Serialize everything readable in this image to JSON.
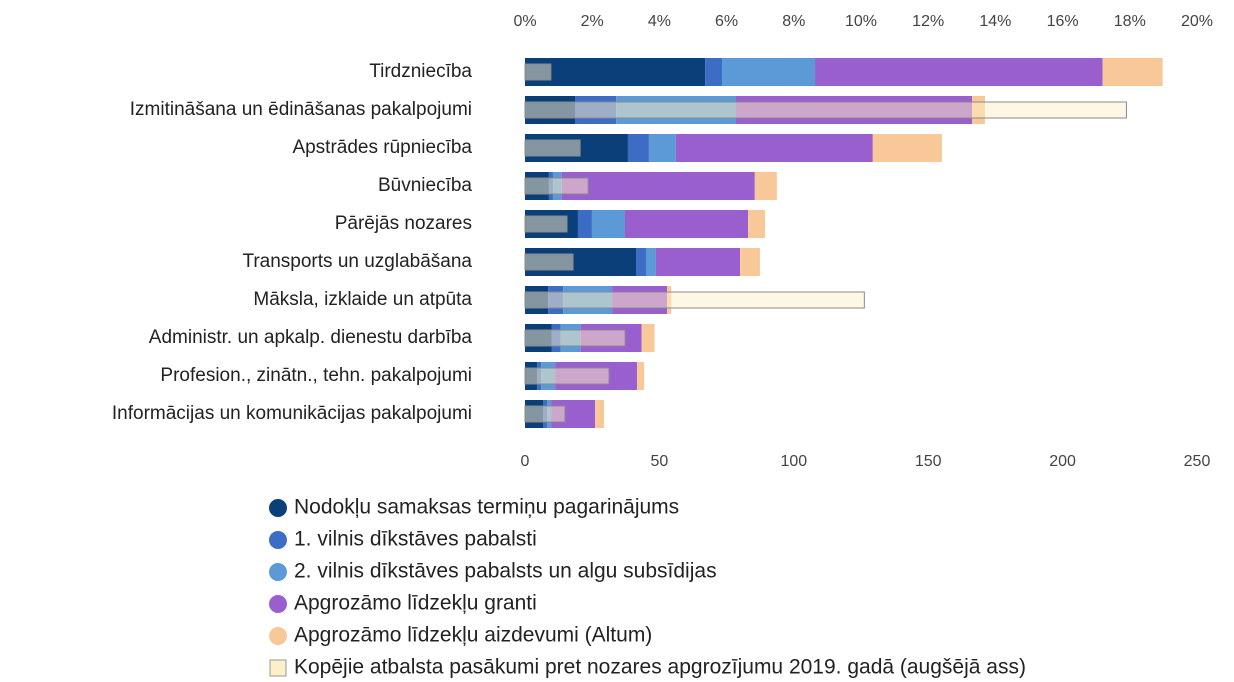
{
  "chart_data": {
    "type": "bar",
    "orientation": "horizontal",
    "stacked": true,
    "categories": [
      "Tirdzniecība",
      "Izmitināšana un ēdināšanas pakalpojumi",
      "Apstrādes rūpniecība",
      "Būvniecība",
      "Pārējās nozares",
      "Transports un uzglabāšana",
      "Māksla, izklaide un atpūta",
      "Administr. un apkalp. dienestu darbība",
      "Profesion., zinātn., tehn. pakalpojumi",
      "Informācijas un komunikācijas pakalpojumi"
    ],
    "series": [
      {
        "name": "Nodokļu samaksas termiņu pagarinājums",
        "color": "#0b3f7a",
        "values": [
          67,
          18.6,
          38.3,
          8.9,
          19.7,
          41.3,
          8.6,
          10,
          4.5,
          6.7
        ]
      },
      {
        "name": "1. vilnis dīkstāves pabalsti",
        "color": "#3d6cc4",
        "values": [
          6.3,
          15.3,
          7.8,
          1.5,
          5.2,
          3.7,
          5.6,
          3.3,
          1.5,
          1.5
        ]
      },
      {
        "name": "2. vilnis dīkstāves pabalsts un algu subsīdijas",
        "color": "#5b9ad6",
        "values": [
          34.6,
          44.6,
          10,
          3.3,
          12.3,
          3.7,
          18.2,
          7.4,
          5.2,
          1.5
        ]
      },
      {
        "name": "Apgrozāmo līdzekļu granti",
        "color": "#9a5fcf",
        "values": [
          107,
          87.8,
          73.3,
          71.8,
          45.8,
          31.3,
          20.5,
          22.7,
          30.5,
          16.4
        ]
      },
      {
        "name": "Apgrozāmo līdzekļu aizdevumi (Altum)",
        "color": "#f8c898",
        "values": [
          22.3,
          4.8,
          25.7,
          8.2,
          6.3,
          7.4,
          1.5,
          4.8,
          2.6,
          3.3
        ]
      },
      {
        "name": "Kopējie atbalsta pasākumi pret nozares apgrozījumu 2019. gadā (augšējā ass)",
        "color": "#fdf0c8",
        "axis": "x2",
        "values": [
          0.77,
          17.9,
          1.64,
          1.88,
          1.25,
          1.43,
          10.1,
          2.98,
          2.5,
          1.19
        ]
      }
    ],
    "xlim": [
      0,
      250
    ],
    "xticks": [
      0,
      50,
      100,
      150,
      200,
      250
    ],
    "x2lim": [
      0,
      20
    ],
    "x2ticks": [
      {
        "value": 0,
        "label": "0%"
      },
      {
        "value": 2,
        "label": "2%"
      },
      {
        "value": 4,
        "label": "4%"
      },
      {
        "value": 6,
        "label": "6%"
      },
      {
        "value": 8,
        "label": "8%"
      },
      {
        "value": 10,
        "label": "10%"
      },
      {
        "value": 12,
        "label": "12%"
      },
      {
        "value": 14,
        "label": "14%"
      },
      {
        "value": 16,
        "label": "16%"
      },
      {
        "value": 18,
        "label": "18%"
      },
      {
        "value": 20,
        "label": "20%"
      }
    ],
    "legend": "bottom"
  }
}
